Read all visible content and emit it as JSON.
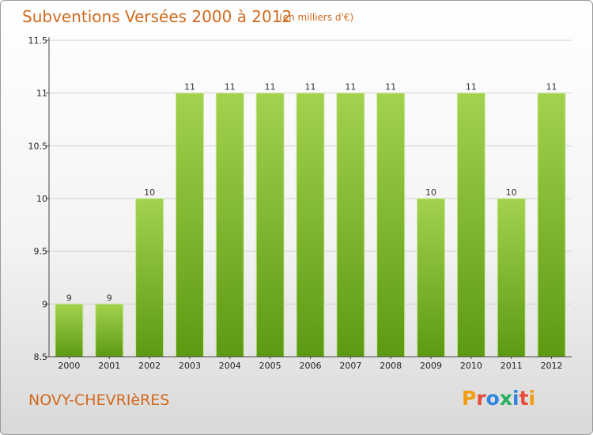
{
  "header": {
    "title": "Subventions Versées 2000 à 2012",
    "unit_note": "(en milliers d'€)"
  },
  "footer": {
    "commune": "NOVY-CHEVRIèRES",
    "logo": {
      "text": "Proxiti",
      "letter_colors": [
        "#f39c12",
        "#e74c3c",
        "#2e86de",
        "#27ae60",
        "#2e86de",
        "#e74c3c",
        "#f39c12"
      ]
    }
  },
  "colors": {
    "bar_light": "#a3d24e",
    "bar_dark": "#5c9a12",
    "axis": "#444444",
    "grid": "#cfcfcf"
  },
  "chart_data": {
    "type": "bar",
    "categories": [
      "2000",
      "2001",
      "2002",
      "2003",
      "2004",
      "2005",
      "2006",
      "2007",
      "2008",
      "2009",
      "2010",
      "2011",
      "2012"
    ],
    "values": [
      9,
      9,
      10,
      11,
      11,
      11,
      11,
      11,
      11,
      10,
      11,
      10,
      11
    ],
    "data_labels": [
      "9",
      "9",
      "10",
      "11",
      "11",
      "11",
      "11",
      "11",
      "11",
      "10",
      "11",
      "10",
      "11"
    ],
    "yticks": [
      8.5,
      9,
      9.5,
      10,
      10.5,
      11,
      11.5
    ],
    "ytick_labels": [
      "8.5",
      "9",
      "9.5",
      "10",
      "10.5",
      "11",
      "11.5"
    ],
    "ylim": [
      8.5,
      11.5
    ],
    "title": "Subventions Versées 2000 à 2012",
    "xlabel": "",
    "ylabel": "",
    "grid": true,
    "legend": "none"
  }
}
